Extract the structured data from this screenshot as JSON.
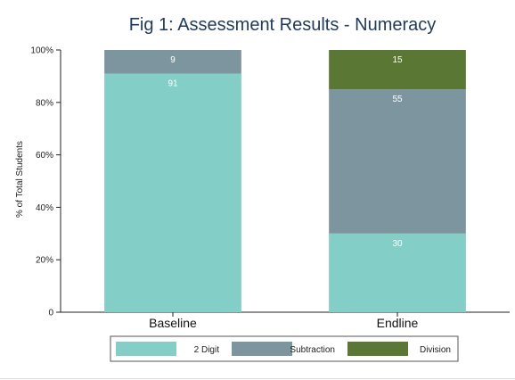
{
  "chart_data": {
    "type": "bar",
    "stacked": true,
    "title": "Fig 1: Assessment Results - Numeracy",
    "xlabel": "",
    "ylabel": "% of Total Students",
    "categories": [
      "Baseline",
      "Endline"
    ],
    "ylim": [
      0,
      100
    ],
    "yticks": [
      "0",
      "20%",
      "40%",
      "60%",
      "80%",
      "100%"
    ],
    "ytick_values": [
      0,
      20,
      40,
      60,
      80,
      100
    ],
    "grid": false,
    "legend_position": "bottom",
    "series": [
      {
        "name": "2 Digit",
        "color": "#83cec6",
        "values": [
          91,
          30
        ],
        "labels": [
          "91",
          "30"
        ]
      },
      {
        "name": "Subtraction",
        "color": "#7d959e",
        "values": [
          9,
          55
        ],
        "labels": [
          "9",
          "55"
        ]
      },
      {
        "name": "Division",
        "color": "#5a7734",
        "values": [
          0,
          15
        ],
        "labels": [
          "",
          "15"
        ]
      }
    ]
  }
}
